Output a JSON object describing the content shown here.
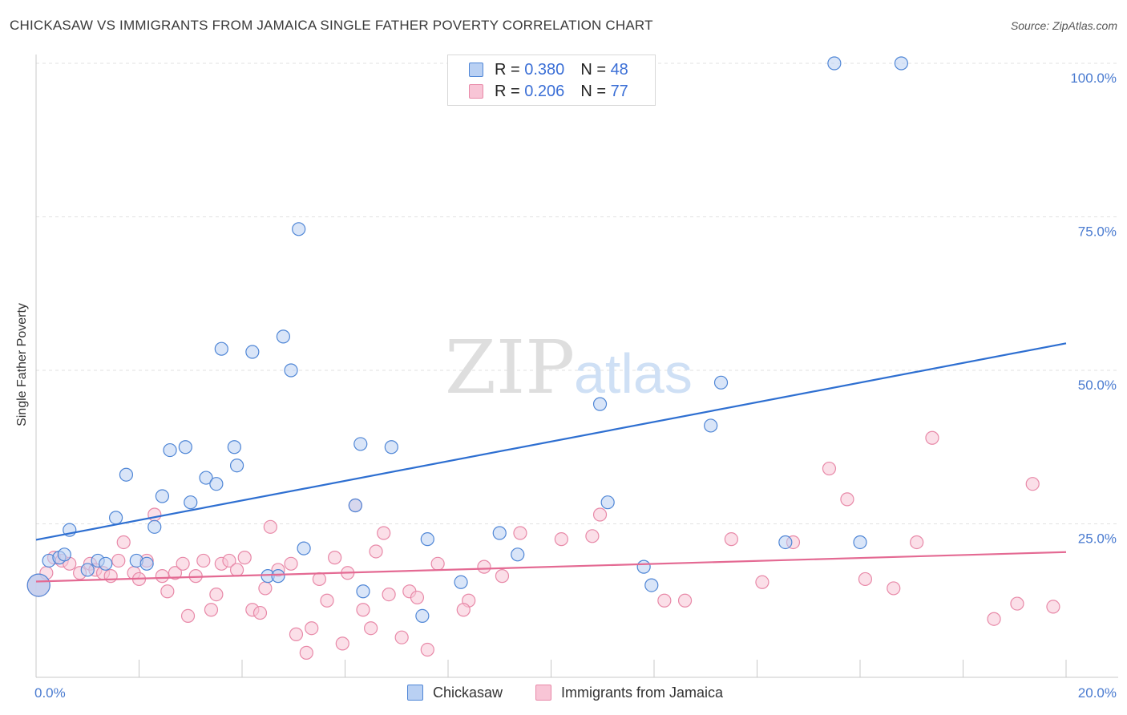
{
  "header": {
    "title": "CHICKASAW VS IMMIGRANTS FROM JAMAICA SINGLE FATHER POVERTY CORRELATION CHART",
    "source": "Source: ZipAtlas.com"
  },
  "watermark": {
    "zip": "ZIP",
    "atlas": "atlas"
  },
  "legend": {
    "r_label": "R =",
    "n_label": "N =",
    "rows": [
      {
        "r": "0.380",
        "n": "48"
      },
      {
        "r": "0.206",
        "n": "77"
      }
    ]
  },
  "colors": {
    "chickasaw_fill": "#b9d0f3",
    "chickasaw_stroke": "#4f86d6",
    "chickasaw_line": "#2e6fd1",
    "jamaica_fill": "#f8c5d6",
    "jamaica_stroke": "#e889a8",
    "jamaica_line": "#e46a93",
    "tick_text": "#4a7bd0"
  },
  "chart_data": {
    "type": "scatter",
    "title": "CHICKASAW VS IMMIGRANTS FROM JAMAICA SINGLE FATHER POVERTY CORRELATION CHART",
    "xlabel": "",
    "ylabel": "Single Father Poverty",
    "xlim": [
      0,
      20
    ],
    "ylim": [
      0,
      100
    ],
    "x_tick_labels": [
      {
        "value": 0,
        "label": "0.0%"
      },
      {
        "value": 20,
        "label": "20.0%"
      }
    ],
    "x_minor_ticks": [
      2,
      4,
      6,
      8,
      10,
      12,
      14,
      16,
      18,
      20
    ],
    "y_tick_labels": [
      {
        "value": 100,
        "label": "100.0%"
      },
      {
        "value": 75,
        "label": "75.0%"
      },
      {
        "value": 50,
        "label": "50.0%"
      },
      {
        "value": 25,
        "label": "25.0%"
      }
    ],
    "gridlines": [
      100,
      75,
      50,
      25
    ],
    "legend_position": "top-center",
    "series": [
      {
        "name": "Chickasaw",
        "r": 0.38,
        "n": 48,
        "trend": {
          "x": [
            0,
            20
          ],
          "y": [
            22.4,
            54.4
          ]
        },
        "points": [
          [
            0.25,
            19.0
          ],
          [
            0.45,
            19.5
          ],
          [
            0.55,
            20.0
          ],
          [
            0.65,
            24.0
          ],
          [
            1.0,
            17.5
          ],
          [
            1.2,
            19.0
          ],
          [
            1.35,
            18.5
          ],
          [
            1.55,
            26.0
          ],
          [
            1.75,
            33.0
          ],
          [
            1.95,
            19.0
          ],
          [
            2.15,
            18.5
          ],
          [
            2.3,
            24.5
          ],
          [
            2.45,
            29.5
          ],
          [
            2.6,
            37.0
          ],
          [
            2.9,
            37.5
          ],
          [
            3.0,
            28.5
          ],
          [
            3.3,
            32.5
          ],
          [
            3.5,
            31.5
          ],
          [
            3.6,
            53.5
          ],
          [
            3.85,
            37.5
          ],
          [
            3.9,
            34.5
          ],
          [
            4.2,
            53.0
          ],
          [
            4.5,
            16.5
          ],
          [
            4.7,
            16.5
          ],
          [
            4.8,
            55.5
          ],
          [
            4.95,
            50.0
          ],
          [
            5.1,
            73.0
          ],
          [
            5.2,
            21.0
          ],
          [
            6.2,
            28.0
          ],
          [
            6.35,
            14.0
          ],
          [
            6.3,
            38.0
          ],
          [
            6.9,
            37.5
          ],
          [
            7.5,
            10.0
          ],
          [
            7.6,
            22.5
          ],
          [
            8.25,
            15.5
          ],
          [
            9.0,
            23.5
          ],
          [
            9.35,
            20.0
          ],
          [
            10.95,
            44.5
          ],
          [
            11.1,
            28.5
          ],
          [
            11.8,
            18.0
          ],
          [
            11.95,
            15.0
          ],
          [
            13.1,
            41.0
          ],
          [
            13.3,
            48.0
          ],
          [
            14.55,
            22.0
          ],
          [
            15.5,
            100.0
          ],
          [
            16.0,
            22.0
          ],
          [
            16.8,
            100.0
          ],
          [
            0.05,
            15.0
          ]
        ]
      },
      {
        "name": "Immigrants from Jamaica",
        "r": 0.206,
        "n": 77,
        "trend": {
          "x": [
            0,
            20
          ],
          "y": [
            15.6,
            20.4
          ]
        },
        "points": [
          [
            0.05,
            15.0
          ],
          [
            0.2,
            17.0
          ],
          [
            0.35,
            19.5
          ],
          [
            0.5,
            19.0
          ],
          [
            0.65,
            18.5
          ],
          [
            0.85,
            17.0
          ],
          [
            1.05,
            18.5
          ],
          [
            1.15,
            17.5
          ],
          [
            1.3,
            17.0
          ],
          [
            1.45,
            16.5
          ],
          [
            1.6,
            19.0
          ],
          [
            1.7,
            22.0
          ],
          [
            1.9,
            17.0
          ],
          [
            2.0,
            16.0
          ],
          [
            2.15,
            19.0
          ],
          [
            2.3,
            26.5
          ],
          [
            2.45,
            16.5
          ],
          [
            2.55,
            14.0
          ],
          [
            2.7,
            17.0
          ],
          [
            2.85,
            18.5
          ],
          [
            2.95,
            10.0
          ],
          [
            3.1,
            16.5
          ],
          [
            3.25,
            19.0
          ],
          [
            3.4,
            11.0
          ],
          [
            3.5,
            13.5
          ],
          [
            3.6,
            18.5
          ],
          [
            3.75,
            19.0
          ],
          [
            3.9,
            17.5
          ],
          [
            4.05,
            19.5
          ],
          [
            4.2,
            11.0
          ],
          [
            4.35,
            10.5
          ],
          [
            4.45,
            14.5
          ],
          [
            4.55,
            24.5
          ],
          [
            4.7,
            17.5
          ],
          [
            4.95,
            18.5
          ],
          [
            5.05,
            7.0
          ],
          [
            5.25,
            4.0
          ],
          [
            5.35,
            8.0
          ],
          [
            5.5,
            16.0
          ],
          [
            5.65,
            12.5
          ],
          [
            5.8,
            19.5
          ],
          [
            5.95,
            5.5
          ],
          [
            6.05,
            17.0
          ],
          [
            6.2,
            28.0
          ],
          [
            6.35,
            11.0
          ],
          [
            6.5,
            8.0
          ],
          [
            6.6,
            20.5
          ],
          [
            6.75,
            23.5
          ],
          [
            6.85,
            13.5
          ],
          [
            7.1,
            6.5
          ],
          [
            7.25,
            14.0
          ],
          [
            7.4,
            13.0
          ],
          [
            7.6,
            4.5
          ],
          [
            7.8,
            18.5
          ],
          [
            8.4,
            12.5
          ],
          [
            8.7,
            18.0
          ],
          [
            9.05,
            16.5
          ],
          [
            9.4,
            23.5
          ],
          [
            10.2,
            22.5
          ],
          [
            10.8,
            23.0
          ],
          [
            10.95,
            26.5
          ],
          [
            12.2,
            12.5
          ],
          [
            12.6,
            12.5
          ],
          [
            13.5,
            22.5
          ],
          [
            14.1,
            15.5
          ],
          [
            14.7,
            22.0
          ],
          [
            15.4,
            34.0
          ],
          [
            15.75,
            29.0
          ],
          [
            16.1,
            16.0
          ],
          [
            16.65,
            14.5
          ],
          [
            17.1,
            22.0
          ],
          [
            17.4,
            39.0
          ],
          [
            18.6,
            9.5
          ],
          [
            19.05,
            12.0
          ],
          [
            19.35,
            31.5
          ],
          [
            19.75,
            11.5
          ],
          [
            8.3,
            11.0
          ]
        ]
      }
    ]
  }
}
